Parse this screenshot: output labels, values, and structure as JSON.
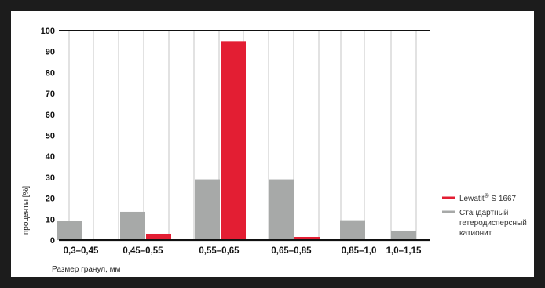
{
  "chart_data": {
    "type": "bar",
    "xlabel": "Размер гранул, мм",
    "ylabel": "проценты [%]",
    "ylim": [
      0,
      100
    ],
    "yticks": [
      0,
      10,
      20,
      30,
      40,
      50,
      60,
      70,
      80,
      90,
      100
    ],
    "categories": [
      "0,3–0,45",
      "0,45–0,55",
      "0,55–0,65",
      "0,65–0,85",
      "0,85–1,0",
      "1,0–1,15"
    ],
    "series": [
      {
        "name": "Стандартный гетеродисперсный катионит",
        "legend_lines": [
          "Стандартный",
          "гетеродисперсный",
          "катионит"
        ],
        "color": "#a7a9a8",
        "values": [
          9,
          13.5,
          29,
          29,
          9.5,
          4.5
        ]
      },
      {
        "name": "Lewatit® S 1667",
        "legend_base": "Lewatit",
        "legend_sup": "®",
        "legend_rest": " S 1667",
        "color": "#e31e33",
        "values": [
          0,
          3,
          95,
          1.5,
          0,
          0
        ]
      }
    ],
    "grid": "vertical",
    "legend_position": "right"
  }
}
